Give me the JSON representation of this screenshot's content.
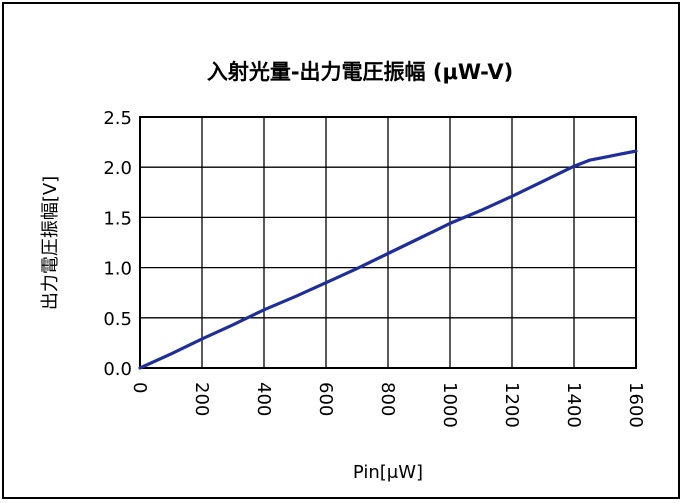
{
  "chart_data": {
    "type": "line",
    "title": "入射光量-出力電圧振幅 (μW-V)",
    "xlabel": "Pin[μW]",
    "ylabel": "出力電圧振幅[V]",
    "xlim": [
      0,
      1600
    ],
    "ylim": [
      0,
      2.5
    ],
    "x_ticks": [
      "0",
      "200",
      "400",
      "600",
      "800",
      "1000",
      "1200",
      "1400",
      "1600"
    ],
    "y_ticks": [
      "0.0",
      "0.5",
      "1.0",
      "1.5",
      "2.0",
      "2.5"
    ],
    "grid": true,
    "legend": "none",
    "colors": {
      "series": "#1f2f9a",
      "grid": "#000000"
    },
    "series": [
      {
        "x": [
          0,
          100,
          200,
          300,
          400,
          500,
          600,
          700,
          800,
          900,
          1000,
          1100,
          1200,
          1300,
          1400,
          1450,
          1500,
          1550,
          1600
        ],
        "y": [
          0.0,
          0.14,
          0.29,
          0.43,
          0.58,
          0.71,
          0.85,
          0.99,
          1.14,
          1.29,
          1.44,
          1.57,
          1.71,
          1.86,
          2.01,
          2.07,
          2.1,
          2.13,
          2.16
        ]
      }
    ]
  }
}
